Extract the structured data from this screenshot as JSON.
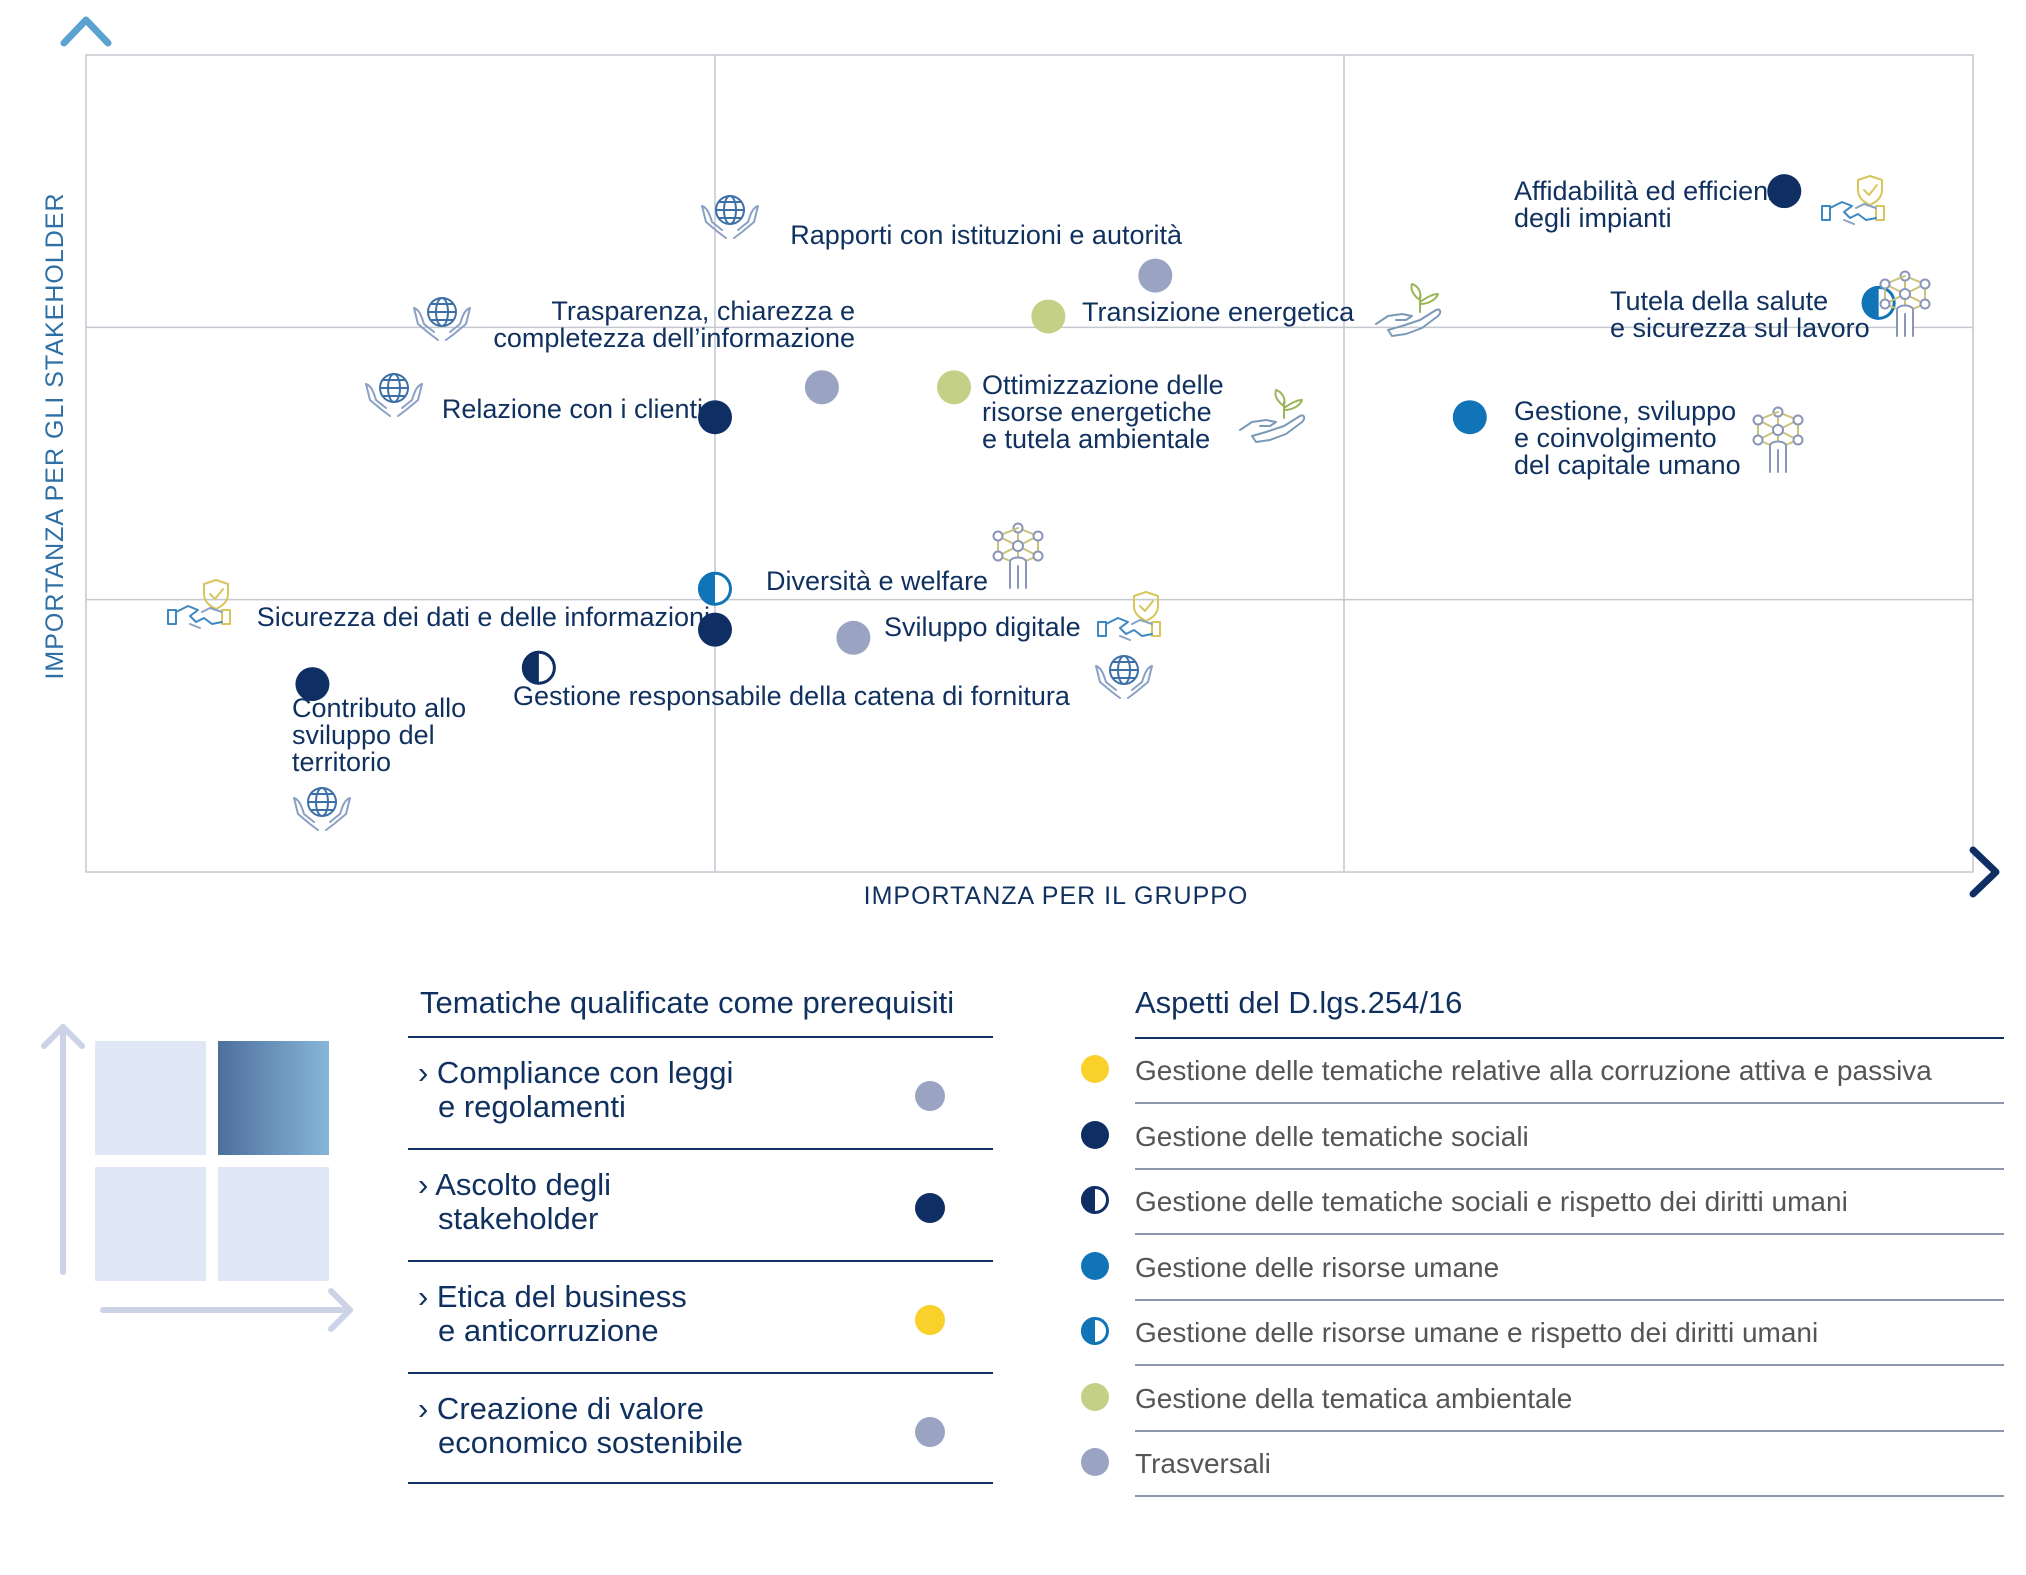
{
  "colors": {
    "corruzione": "#f9d12a",
    "sociali": "#0f2f64",
    "sociali_diritti": "#0f2f64",
    "risorse_umane": "#1174b6",
    "risorse_umane_diritti": "#1174b6",
    "ambientale": "#c3d086",
    "trasversali": "#9aa4c2"
  },
  "chart_data": {
    "type": "scatter",
    "xlabel": "IMPORTANZA PER IL GRUPPO",
    "ylabel": "IMPORTANZA PER GLI STAKEHOLDER",
    "xlim": [
      0,
      3
    ],
    "ylim": [
      0,
      3
    ],
    "grid": true,
    "points": [
      {
        "label": [
          "Affidabilità ed efficienza",
          "degli impianti"
        ],
        "x": 2.7,
        "y": 2.5,
        "category": "sociali",
        "icon": "shield-handshake-icon"
      },
      {
        "label": [
          "Rapporti con istituzioni e autorità"
        ],
        "x": 1.7,
        "y": 2.19,
        "category": "trasversali",
        "icon": "globe-hands-icon"
      },
      {
        "label": [
          "Transizione energetica"
        ],
        "x": 1.53,
        "y": 2.04,
        "category": "ambientale",
        "icon": "plant-hand-icon"
      },
      {
        "label": [
          "Tutela della salute",
          "e sicurezza sul lavoro"
        ],
        "x": 2.85,
        "y": 2.09,
        "category": "risorse_umane_diritti",
        "icon": "people-network-icon"
      },
      {
        "label": [
          "Trasparenza, chiarezza e",
          "completezza dell’informazione"
        ],
        "x": 1.17,
        "y": 1.78,
        "category": "trasversali",
        "icon": "globe-hands-icon"
      },
      {
        "label": [
          "Relazione con i clienti"
        ],
        "x": 1.0,
        "y": 1.67,
        "category": "sociali",
        "icon": "globe-hands-icon"
      },
      {
        "label": [
          "Ottimizzazione delle",
          "risorse energetiche",
          "e tutela ambientale"
        ],
        "x": 1.38,
        "y": 1.78,
        "category": "ambientale",
        "icon": "plant-hand-icon"
      },
      {
        "label": [
          "Gestione, sviluppo",
          "e coinvolgimento",
          "del capitale umano"
        ],
        "x": 2.2,
        "y": 1.67,
        "category": "risorse_umane",
        "icon": "people-network-icon"
      },
      {
        "label": [
          "Diversità e welfare"
        ],
        "x": 1.0,
        "y": 1.04,
        "category": "risorse_umane_diritti",
        "icon": "people-network-icon"
      },
      {
        "label": [
          "Sicurezza dei dati e delle informazioni"
        ],
        "x": 1.0,
        "y": 0.89,
        "category": "sociali",
        "icon": "shield-handshake-icon"
      },
      {
        "label": [
          "Sviluppo digitale"
        ],
        "x": 1.22,
        "y": 0.86,
        "category": "trasversali",
        "icon": "shield-handshake-icon"
      },
      {
        "label": [
          "Gestione responsabile della catena di fornitura"
        ],
        "x": 0.72,
        "y": 0.75,
        "category": "sociali_diritti",
        "icon": "globe-hands-icon"
      },
      {
        "label": [
          "Contributo allo",
          "sviluppo del",
          "territorio"
        ],
        "x": 0.36,
        "y": 0.69,
        "category": "sociali",
        "icon": "globe-hands-icon"
      }
    ]
  },
  "prerequisites": {
    "title": "Tematiche qualificate come prerequisiti",
    "items": [
      {
        "line1": "› Compliance con leggi",
        "line2": "e regolamenti",
        "category": "trasversali"
      },
      {
        "line1": "› Ascolto degli",
        "line2": "stakeholder",
        "category": "sociali"
      },
      {
        "line1": "› Etica del business",
        "line2": "e anticorruzione",
        "category": "corruzione"
      },
      {
        "line1": "› Creazione di valore",
        "line2": "economico sostenibile",
        "category": "trasversali"
      }
    ]
  },
  "aspects": {
    "title": "Aspetti del D.lgs.254/16",
    "items": [
      {
        "text": "Gestione delle tematiche relative alla corruzione attiva e passiva",
        "category": "corruzione",
        "half": false
      },
      {
        "text": "Gestione delle tematiche sociali",
        "category": "sociali",
        "half": false
      },
      {
        "text": "Gestione delle tematiche sociali e rispetto dei diritti umani",
        "category": "sociali_diritti",
        "half": true
      },
      {
        "text": "Gestione delle risorse umane",
        "category": "risorse_umane",
        "half": false
      },
      {
        "text": "Gestione delle risorse umane e rispetto dei diritti umani",
        "category": "risorse_umane_diritti",
        "half": true
      },
      {
        "text": "Gestione della tematica ambientale",
        "category": "ambientale",
        "half": false
      },
      {
        "text": "Trasversali",
        "category": "trasversali",
        "half": false
      }
    ]
  }
}
